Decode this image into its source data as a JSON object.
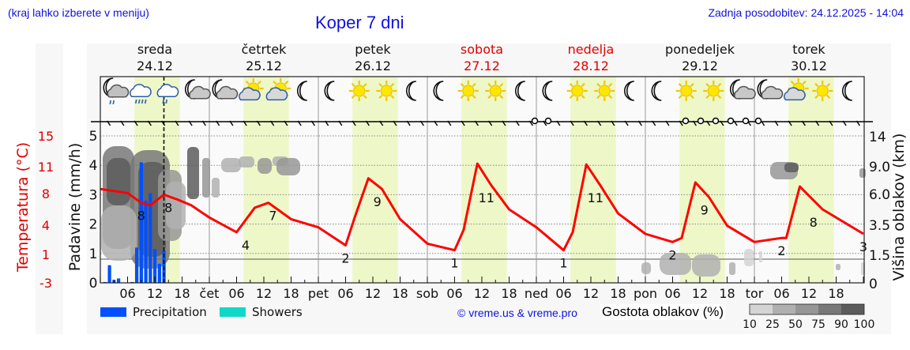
{
  "header": {
    "location_hint": "(kraj lahko izberete v meniju)",
    "title": "Koper 7 dni",
    "last_update": "Zadnja posodobitev: 24.12.2025 - 14:04"
  },
  "days": [
    {
      "name": "sreda",
      "date": "24.12",
      "weekend": false,
      "short": ""
    },
    {
      "name": "četrtek",
      "date": "25.12",
      "weekend": false,
      "short": "čet"
    },
    {
      "name": "petek",
      "date": "26.12",
      "weekend": false,
      "short": "pet"
    },
    {
      "name": "sobota",
      "date": "27.12",
      "weekend": true,
      "short": "sob"
    },
    {
      "name": "nedelja",
      "date": "28.12",
      "weekend": true,
      "short": "ned"
    },
    {
      "name": "ponedeljek",
      "date": "29.12",
      "weekend": false,
      "short": "pon"
    },
    {
      "name": "torek",
      "date": "30.12",
      "weekend": false,
      "short": "tor"
    }
  ],
  "axes": {
    "temperature_label": "Temperatura (°C)",
    "temperature_ticks": [
      "15",
      "11",
      "8",
      "4",
      "1",
      "-3"
    ],
    "precip_label": "Padavine (mm/h)",
    "precip_ticks": [
      "5",
      "4",
      "3",
      "2",
      "1",
      "0"
    ],
    "cloud_height_label": "Višina oblakov (km)",
    "cloud_height_ticks": [
      "14",
      "9.0",
      "6.0",
      "3.5",
      "1.5",
      "0"
    ],
    "hour_ticks": [
      "06",
      "12",
      "18"
    ]
  },
  "weather_icons": [
    "moon-cloud-rain",
    "cloud-heavy-rain",
    "cloud-rain",
    "moon-cloud",
    "moon-cloud",
    "sun-cloud",
    "sun-cloud",
    "moon",
    "moon",
    "sun",
    "sun",
    "moon",
    "moon",
    "sun",
    "sun",
    "moon",
    "moon",
    "sun",
    "sun",
    "moon",
    "moon",
    "sun",
    "sun",
    "moon-cloud",
    "moon-cloud",
    "sun-cloud",
    "sun",
    "moon"
  ],
  "legend": {
    "precipitation": "Precipitation",
    "showers": "Showers",
    "precipitation_color": "#0050ff",
    "showers_color": "#10d8c8",
    "copyright": "© vreme.us & vreme.pro",
    "cloud_density_label": "Gostota oblakov (%)",
    "cloud_density_ticks": [
      "10",
      "25",
      "50",
      "75",
      "90",
      "100"
    ],
    "cloud_density_colors": [
      "#d4d4d4",
      "#b0b0b0",
      "#969696",
      "#787878",
      "#5c5c5c"
    ]
  },
  "colors": {
    "temperature_line": "#ff0000",
    "daytime_band": "#eef7c8",
    "header_blue": "#1010e0",
    "weekend_red": "#e00000"
  },
  "chart_data": {
    "type": "line",
    "title": "Koper 7 dni",
    "xlabel": "",
    "ylabel": "Temperatura (°C)",
    "ylim": [
      -3,
      15
    ],
    "series": [
      {
        "name": "Temperatura (°C)",
        "hours": [
          0,
          6,
          9,
          11,
          14,
          17,
          20,
          24,
          30,
          34,
          37,
          42,
          48,
          54,
          56,
          59,
          62,
          66,
          72,
          78,
          80,
          83,
          86,
          90,
          96,
          102,
          104,
          107,
          110,
          114,
          120,
          126,
          128,
          131,
          134,
          138,
          144,
          150,
          151,
          154,
          159,
          168
        ],
        "values": [
          8.5,
          8.0,
          6.8,
          6.5,
          7.8,
          7.2,
          6.5,
          5.0,
          3.2,
          6.2,
          6.8,
          4.8,
          3.8,
          1.6,
          5.0,
          9.8,
          8.5,
          4.8,
          1.8,
          1.0,
          3.5,
          11.6,
          9.0,
          6.0,
          3.8,
          1.0,
          3.2,
          11.5,
          9.0,
          5.5,
          3.0,
          2.0,
          2.5,
          9.3,
          7.5,
          4.0,
          2.0,
          2.5,
          2.5,
          8.8,
          6.0,
          3.0
        ],
        "annotations": [
          {
            "hour": 9,
            "label": "8"
          },
          {
            "hour": 15,
            "label": "8"
          },
          {
            "hour": 32,
            "label": "4"
          },
          {
            "hour": 38,
            "label": "7"
          },
          {
            "hour": 54,
            "label": "2"
          },
          {
            "hour": 61,
            "label": "9"
          },
          {
            "hour": 78,
            "label": "1"
          },
          {
            "hour": 85,
            "label": "11"
          },
          {
            "hour": 102,
            "label": "1"
          },
          {
            "hour": 109,
            "label": "11"
          },
          {
            "hour": 126,
            "label": "2"
          },
          {
            "hour": 133,
            "label": "9"
          },
          {
            "hour": 150,
            "label": "2"
          },
          {
            "hour": 157,
            "label": "8"
          },
          {
            "hour": 168,
            "label": "3"
          }
        ]
      },
      {
        "name": "Precipitation (mm/h)",
        "type": "bar",
        "hours": [
          1,
          2,
          3,
          4,
          7,
          8,
          9,
          10,
          11,
          12,
          13,
          14
        ],
        "values": [
          0.03,
          0.6,
          0.1,
          0.15,
          0.03,
          1.2,
          4.1,
          2.8,
          3.05,
          1.15,
          0.65,
          1.1
        ]
      }
    ],
    "secondary_axes": {
      "precipitation": {
        "label": "Padavine (mm/h)",
        "range": [
          0,
          5
        ]
      },
      "cloud_height": {
        "label": "Višina oblakov (km)",
        "ticks": [
          0,
          1.5,
          3.5,
          6.0,
          9.0,
          14
        ]
      }
    },
    "current_time_marker": "24.12 14:00",
    "x_tick_labels": [
      "06",
      "12",
      "18",
      "čet",
      "06",
      "12",
      "18",
      "pet",
      "06",
      "12",
      "18",
      "sob",
      "06",
      "12",
      "18",
      "ned",
      "06",
      "12",
      "18",
      "pon",
      "06",
      "12",
      "18",
      "tor",
      "06",
      "12",
      "18"
    ],
    "grid": true,
    "legend_position": "bottom"
  }
}
